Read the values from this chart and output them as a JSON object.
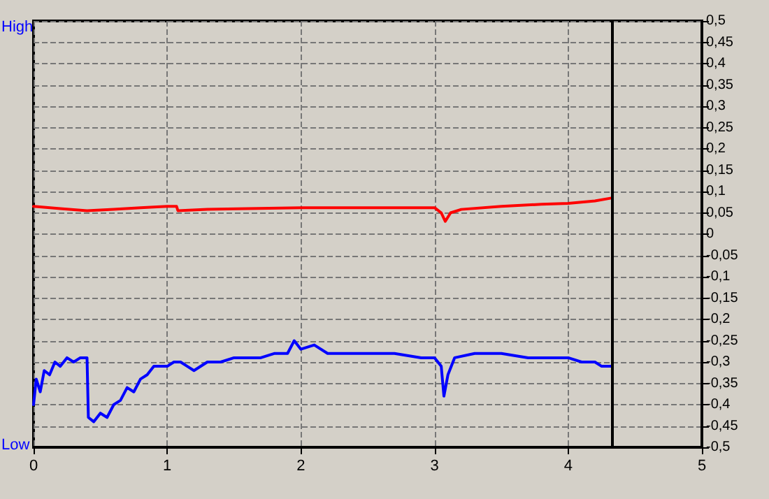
{
  "chart_data": {
    "type": "line",
    "xlim": [
      0,
      5
    ],
    "xticks": [
      0,
      1,
      2,
      3,
      4,
      5
    ],
    "ylim": [
      -0.5,
      0.5
    ],
    "yticks": [
      {
        "value": 0.5,
        "label": "0,5"
      },
      {
        "value": 0.45,
        "label": "0,45"
      },
      {
        "value": 0.4,
        "label": "0,4"
      },
      {
        "value": 0.35,
        "label": "0,35"
      },
      {
        "value": 0.3,
        "label": "0,3"
      },
      {
        "value": 0.25,
        "label": "0,25"
      },
      {
        "value": 0.2,
        "label": "0,2"
      },
      {
        "value": 0.15,
        "label": "0,15"
      },
      {
        "value": 0.1,
        "label": "0,1"
      },
      {
        "value": 0.05,
        "label": "0,05"
      },
      {
        "value": 0,
        "label": "0"
      },
      {
        "value": -0.05,
        "label": "-0,05"
      },
      {
        "value": -0.1,
        "label": "-0,1"
      },
      {
        "value": -0.15,
        "label": "-0,15"
      },
      {
        "value": -0.2,
        "label": "-0,2"
      },
      {
        "value": -0.25,
        "label": "-0,25"
      },
      {
        "value": -0.3,
        "label": "-0,3"
      },
      {
        "value": -0.35,
        "label": "-0,35"
      },
      {
        "value": -0.4,
        "label": "-0,4"
      },
      {
        "value": -0.45,
        "label": "-0,45"
      },
      {
        "value": -0.5,
        "label": "-0,5"
      }
    ],
    "annotations": [
      "High",
      "Low"
    ],
    "grid": true,
    "marker": "none",
    "line_style": "solid",
    "ref_lines": [
      {
        "axis": "x",
        "value": 4.33,
        "color": "#000000"
      }
    ],
    "series": [
      {
        "color": "#ff0000",
        "x": [
          0,
          0.2,
          0.4,
          0.6,
          0.8,
          1.0,
          1.07,
          1.08,
          1.3,
          1.6,
          2.0,
          2.5,
          3.0,
          3.05,
          3.08,
          3.12,
          3.2,
          3.5,
          3.8,
          4.0,
          4.2,
          4.33
        ],
        "values": [
          0.065,
          0.06,
          0.055,
          0.058,
          0.062,
          0.065,
          0.065,
          0.055,
          0.058,
          0.06,
          0.062,
          0.062,
          0.062,
          0.05,
          0.03,
          0.05,
          0.058,
          0.065,
          0.07,
          0.072,
          0.078,
          0.085
        ]
      },
      {
        "color": "#0000ff",
        "x": [
          0,
          0.02,
          0.05,
          0.08,
          0.12,
          0.16,
          0.2,
          0.25,
          0.3,
          0.35,
          0.4,
          0.41,
          0.45,
          0.5,
          0.55,
          0.6,
          0.65,
          0.7,
          0.75,
          0.8,
          0.85,
          0.9,
          1.0,
          1.05,
          1.1,
          1.15,
          1.2,
          1.3,
          1.4,
          1.5,
          1.6,
          1.7,
          1.8,
          1.9,
          1.95,
          2.0,
          2.1,
          2.2,
          2.3,
          2.4,
          2.5,
          2.7,
          2.9,
          3.0,
          3.05,
          3.07,
          3.1,
          3.15,
          3.3,
          3.5,
          3.7,
          3.9,
          4.0,
          4.1,
          4.2,
          4.25,
          4.33
        ],
        "values": [
          -0.4,
          -0.34,
          -0.37,
          -0.32,
          -0.33,
          -0.3,
          -0.31,
          -0.29,
          -0.3,
          -0.29,
          -0.29,
          -0.43,
          -0.44,
          -0.42,
          -0.43,
          -0.4,
          -0.39,
          -0.36,
          -0.37,
          -0.34,
          -0.33,
          -0.31,
          -0.31,
          -0.3,
          -0.3,
          -0.31,
          -0.32,
          -0.3,
          -0.3,
          -0.29,
          -0.29,
          -0.29,
          -0.28,
          -0.28,
          -0.25,
          -0.27,
          -0.26,
          -0.28,
          -0.28,
          -0.28,
          -0.28,
          -0.28,
          -0.29,
          -0.29,
          -0.31,
          -0.38,
          -0.33,
          -0.29,
          -0.28,
          -0.28,
          -0.29,
          -0.29,
          -0.29,
          -0.3,
          -0.3,
          -0.31,
          -0.31
        ]
      }
    ]
  }
}
